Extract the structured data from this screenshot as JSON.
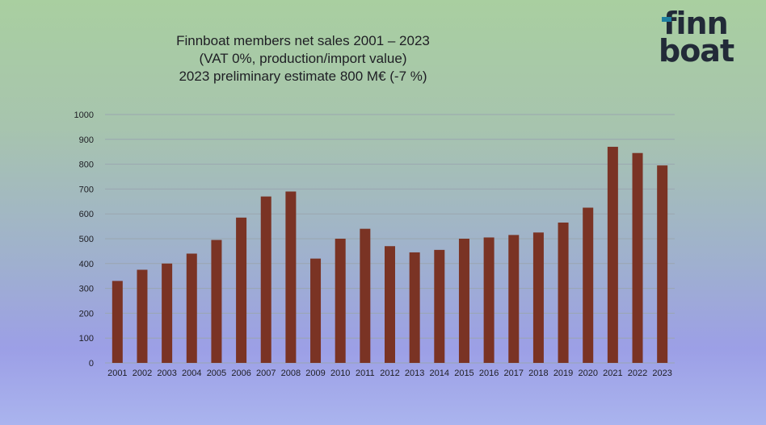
{
  "title_lines": [
    "Finnboat members net sales 2001 – 2023",
    "(VAT 0%, production/import value)",
    "2023 preliminary estimate 800 M€  (-7 %)"
  ],
  "logo": {
    "line1": "finn",
    "line2": "boat",
    "accent_color": "#1e7fa0"
  },
  "colors": {
    "bar": "#7a3324",
    "grid": "#9aa6b0",
    "text": "#1e1e24"
  },
  "chart_data": {
    "type": "bar",
    "categories": [
      "2001",
      "2002",
      "2003",
      "2004",
      "2005",
      "2006",
      "2007",
      "2008",
      "2009",
      "2010",
      "2011",
      "2012",
      "2013",
      "2014",
      "2015",
      "2016",
      "2017",
      "2018",
      "2019",
      "2020",
      "2021",
      "2022",
      "2023"
    ],
    "values": [
      330,
      375,
      400,
      440,
      495,
      585,
      670,
      690,
      420,
      500,
      540,
      470,
      445,
      455,
      500,
      505,
      515,
      525,
      565,
      625,
      870,
      845,
      795
    ],
    "ylim": [
      0,
      1000
    ],
    "yticks": [
      "0",
      "100",
      "200",
      "300",
      "400",
      "500",
      "600",
      "700",
      "800",
      "900",
      "1000"
    ],
    "grid": true,
    "title": "Finnboat members net sales 2001 – 2023",
    "xlabel": "",
    "ylabel": ""
  }
}
